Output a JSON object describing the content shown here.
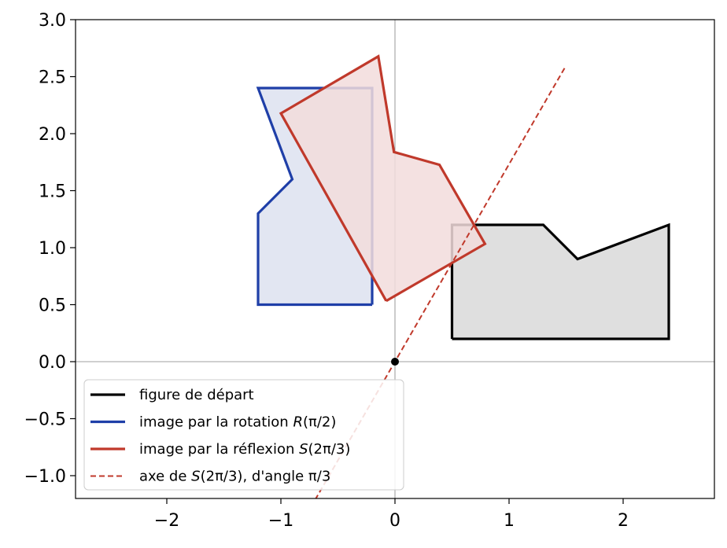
{
  "chart_data": {
    "type": "line",
    "title": "",
    "xlabel": "",
    "ylabel": "",
    "xlim": [
      -2.8,
      2.8
    ],
    "ylim": [
      -1.2,
      3.0
    ],
    "xticks": [
      {
        "value": -2,
        "label": "−2"
      },
      {
        "value": -1,
        "label": "−1"
      },
      {
        "value": 0,
        "label": "0"
      },
      {
        "value": 1,
        "label": "1"
      },
      {
        "value": 2,
        "label": "2"
      }
    ],
    "yticks": [
      {
        "value": -1.0,
        "label": "−1.0"
      },
      {
        "value": -0.5,
        "label": "−0.5"
      },
      {
        "value": 0.0,
        "label": "0.0"
      },
      {
        "value": 0.5,
        "label": "0.5"
      },
      {
        "value": 1.0,
        "label": "1.0"
      },
      {
        "value": 1.5,
        "label": "1.5"
      },
      {
        "value": 2.0,
        "label": "2.0"
      },
      {
        "value": 2.5,
        "label": "2.5"
      },
      {
        "value": 3.0,
        "label": "3.0"
      }
    ],
    "grid": false,
    "origin_axes": true,
    "origin_point": {
      "x": 0,
      "y": 0
    },
    "legend_position": "lower-left",
    "series": [
      {
        "name": "figure de départ",
        "kind": "polygon",
        "color": "#000000",
        "fill": "#d9d9d9",
        "x": [
          0.5,
          2.4,
          2.4,
          1.6,
          1.3,
          0.5,
          0.5
        ],
        "y": [
          0.2,
          0.2,
          1.2,
          0.9,
          1.2,
          1.2,
          0.2
        ]
      },
      {
        "name": "image par la rotation R(π/2)",
        "kind": "polygon",
        "color": "#1f3fa8",
        "fill": "#dde2f0",
        "x": [
          -0.2,
          -0.2,
          -1.2,
          -0.9,
          -1.2,
          -1.2,
          -0.2
        ],
        "y": [
          0.5,
          2.4,
          2.4,
          1.6,
          1.3,
          0.5,
          0.5
        ]
      },
      {
        "name": "image par la réflexion S(2π/3)",
        "kind": "polygon",
        "color": "#c0392b",
        "fill": "#f2dcdc",
        "x": [
          -0.077,
          -1.0,
          -0.146,
          -0.009,
          0.39,
          0.789,
          -0.077
        ],
        "y": [
          0.533,
          2.178,
          2.678,
          1.839,
          1.727,
          1.033,
          0.533
        ]
      },
      {
        "name": "axe de S(2π/3), d'angle π/3",
        "kind": "dashed-line",
        "color": "#c0392b",
        "x": [
          -0.7,
          1.5
        ],
        "y": [
          -1.212,
          2.598
        ]
      }
    ],
    "legend": [
      {
        "label": "figure de départ",
        "color": "#000000",
        "dash": false
      },
      {
        "label_pre": "image par la rotation ",
        "label_math": "R",
        "label_post": "(π/2)",
        "color": "#1f3fa8",
        "dash": false
      },
      {
        "label_pre": "image par la réflexion ",
        "label_math": "S",
        "label_post": "(2π/3)",
        "color": "#c0392b",
        "dash": false
      },
      {
        "label_pre": "axe de ",
        "label_math": "S",
        "label_post": "(2π/3), d'angle π/3",
        "color": "#c0392b",
        "dash": true
      }
    ]
  }
}
